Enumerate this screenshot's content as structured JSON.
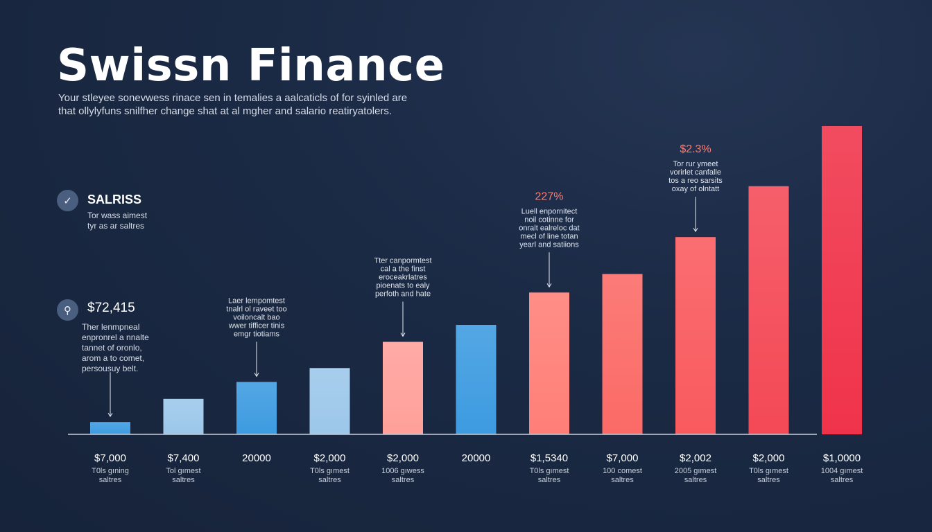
{
  "header": {
    "title": "Swissn Finance",
    "subtitle_lines": [
      "Your stleyee sonevwess rinace sen in temalies a aalcaticls of for syinled are",
      "that ollylyfuns snilfher change shat at al mgher and salario reatiryatolers."
    ]
  },
  "sidebar": {
    "salaries": {
      "icon": "checkmark-icon",
      "icon_glyph": "✓",
      "heading": "SALRISS",
      "note_lines": [
        "Tor wass aimest",
        "tyr as ar saltres"
      ]
    },
    "total": {
      "icon": "search-icon",
      "icon_glyph": "⚲",
      "value": "$72,415",
      "note_lines": [
        "Ther lenmpneal",
        "enpronrel a nnalte",
        "tannet of oronlo,",
        "arom a to comet,",
        "persousuy belt."
      ]
    }
  },
  "colors": {
    "background": "#1b2a45",
    "blue_dark": "#3d9be0",
    "blue_light": "#9cc7ea",
    "red_light": "#ffa09a",
    "red_dark": "#f0334a",
    "callout_pct": "#ff7b6e",
    "axis": "#c8d0dc"
  },
  "chart_data": {
    "type": "bar",
    "title": "Swissn Finance",
    "xlabel": "",
    "ylabel": "",
    "ylim": [
      0,
      100
    ],
    "grid": false,
    "legend": "none",
    "categories": [
      "$7,000",
      "$7,400",
      "20000",
      "$2,000",
      "$2,000",
      "20000",
      "$1,5340",
      "$7,000",
      "$2,002",
      "$2,000",
      "$1,0000"
    ],
    "sublabels": [
      [
        "T0ls gıning",
        "saltres"
      ],
      [
        "Tol gımest",
        "saltres"
      ],
      [],
      [
        "T0ls gımest",
        "saltres"
      ],
      [
        "1006 gıwess",
        "saltres"
      ],
      [],
      [
        "T0ls gımest",
        "saltres"
      ],
      [
        "100 comest",
        "saltres"
      ],
      [
        "2005 gımest",
        "saltres"
      ],
      [
        "T0ls gımest",
        "saltres"
      ],
      [
        "1004 gımest",
        "saltres"
      ]
    ],
    "values": [
      4,
      11.5,
      17,
      21.5,
      30,
      35.5,
      46,
      52,
      64,
      80.5,
      100
    ],
    "bar_colors": [
      "#3d9be0",
      "#9cc7ea",
      "#3d9be0",
      "#9cc7ea",
      "#ffa09a",
      "#3d9be0",
      "#ff7f77",
      "#fb6a66",
      "#f95a5e",
      "#f44956",
      "#f0334a"
    ],
    "annotations": [
      {
        "bar": 0,
        "lines": []
      },
      {
        "bar": 2,
        "lines": [
          "Laer lempomtest",
          "tnalrl ol raveet too",
          "voiloncalt bao",
          "wwer tifficer tinis",
          "emgr tiotiams"
        ]
      },
      {
        "bar": 4,
        "lines": [
          "Tter canpormtest",
          "cal a the finst",
          "eroceakrlatres",
          "pioenats to ealy",
          "perfoth and hate"
        ]
      },
      {
        "bar": 6,
        "pct": "227%",
        "lines": [
          "Luell enpornitect",
          "noil cotinne for",
          "onralt ealreloc dat",
          "mecl of line totan",
          "yearl and satiions"
        ]
      },
      {
        "bar": 8,
        "pct": "$2.3%",
        "lines": [
          "Tor rur ymeet",
          "vorirlet canfalle",
          "tos a reo sarsits",
          "oxay of olntatt"
        ]
      }
    ]
  }
}
